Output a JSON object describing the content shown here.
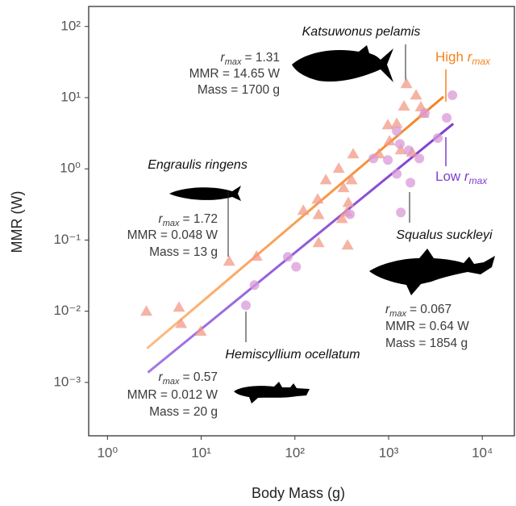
{
  "chart_data": {
    "type": "scatter",
    "x_label": "Body Mass (g)",
    "y_label": "MMR (W)",
    "xlog": true,
    "ylog": true,
    "xlim": [
      0.63,
      22000
    ],
    "ylim": [
      0.000178,
      191
    ],
    "xticks": [
      {
        "value": 1,
        "label": "10⁰"
      },
      {
        "value": 10,
        "label": "10¹"
      },
      {
        "value": 100,
        "label": "10²"
      },
      {
        "value": 1000,
        "label": "10³"
      },
      {
        "value": 10000,
        "label": "10⁴"
      }
    ],
    "yticks": [
      {
        "value": 0.001,
        "label": "10⁻³"
      },
      {
        "value": 0.01,
        "label": "10⁻²"
      },
      {
        "value": 0.1,
        "label": "10⁻¹"
      },
      {
        "value": 1,
        "label": "10⁰"
      },
      {
        "value": 10,
        "label": "10¹"
      },
      {
        "value": 100,
        "label": "10²"
      }
    ],
    "series": [
      {
        "marker": "triangle",
        "color": "#f29a86",
        "x": [
          2.6,
          5.8,
          6.1,
          9.9,
          19.9,
          39,
          123,
          179,
          175,
          179,
          214,
          294,
          318,
          358,
          330,
          372,
          403,
          419,
          365,
          982,
          1023,
          1222,
          1350,
          1550,
          1780,
          1965,
          1460,
          2210,
          2350,
          790
        ],
        "values": [
          0.0101,
          0.0115,
          0.0068,
          0.0053,
          0.051,
          0.06,
          0.264,
          0.093,
          0.38,
          0.23,
          0.71,
          1.03,
          0.203,
          0.25,
          0.55,
          0.34,
          0.71,
          1.64,
          0.086,
          4.2,
          2.5,
          4.4,
          1.87,
          15.9,
          1.73,
          11.0,
          7.7,
          7.5,
          6.1,
          1.64
        ]
      },
      {
        "marker": "circle",
        "color": "#d89ad8",
        "x": [
          30,
          37,
          84,
          103,
          688,
          982,
          1222,
          1320,
          1222,
          1350,
          1710,
          1640,
          2130,
          2440,
          3350,
          4170,
          4800,
          387
        ],
        "values": [
          0.0121,
          0.0233,
          0.058,
          0.042,
          1.4,
          1.33,
          3.4,
          2.24,
          0.85,
          0.244,
          0.64,
          1.82,
          1.4,
          6.1,
          2.7,
          5.2,
          10.8,
          0.23
        ]
      }
    ],
    "fits": [
      {
        "color_start": "#fdbb84",
        "color": "#f5821f",
        "x": [
          2.64,
          3850
        ],
        "values": [
          0.003,
          10.3
        ],
        "label": {
          "text": "High ",
          "symbol": "r",
          "subscript": "max"
        }
      },
      {
        "color_start": "#a57ae2",
        "color": "#7f3fcf",
        "x": [
          2.7,
          4900
        ],
        "values": [
          0.00138,
          4.3
        ],
        "label": {
          "text": "Low ",
          "symbol": "r",
          "subscript": "max"
        }
      }
    ],
    "annotations": [
      {
        "species": "Katsuwonus pelamis",
        "symbol": "r",
        "subscript": "max",
        "rmax": "= 1.31",
        "mmr": "MMR = 14.65 W",
        "mass": "Mass = 1700 g"
      },
      {
        "species": "Engraulis ringens",
        "symbol": "r",
        "subscript": "max",
        "rmax": "= 1.72",
        "mmr": "MMR = 0.048 W",
        "mass": "Mass = 13 g"
      },
      {
        "species": "Squalus suckleyi",
        "symbol": "r",
        "subscript": "max",
        "rmax": "= 0.067",
        "mmr": "MMR = 0.64 W",
        "mass": "Mass = 1854 g"
      },
      {
        "species": "Hemiscyllium ocellatum",
        "symbol": "r",
        "subscript": "max",
        "rmax": "= 0.57",
        "mmr": "MMR = 0.012 W",
        "mass": "Mass = 20 g"
      }
    ]
  }
}
